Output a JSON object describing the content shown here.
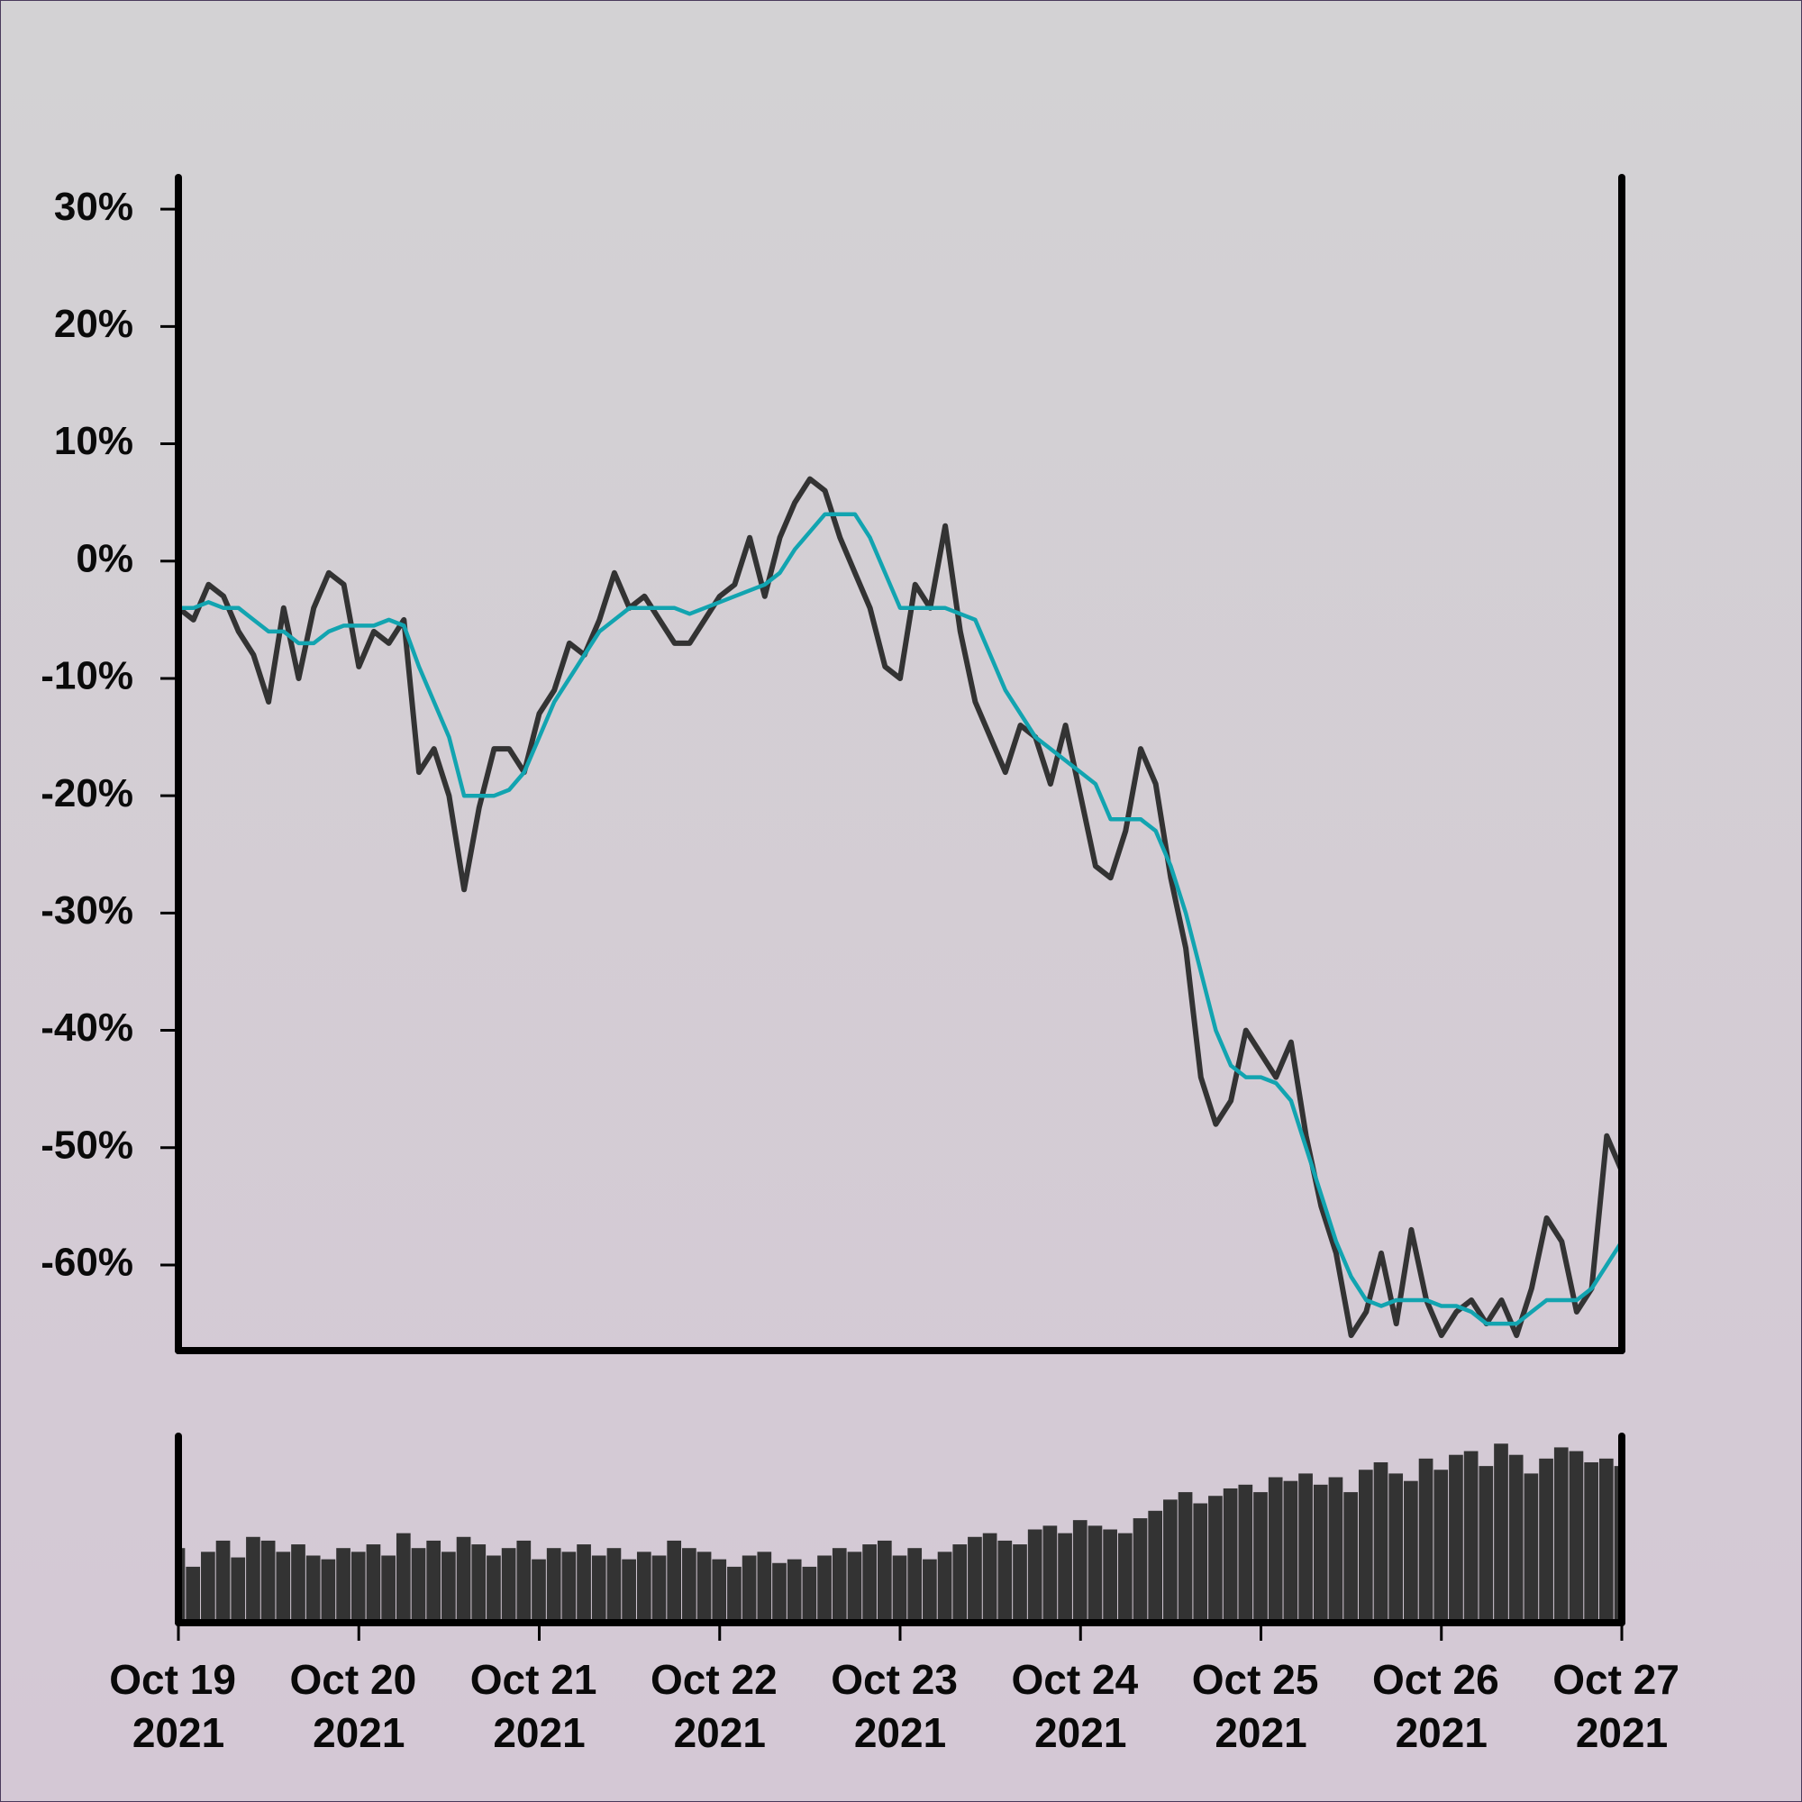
{
  "chart_data": [
    {
      "type": "line",
      "x": [
        "2021-10-19T00:00",
        "2021-10-19T02:00",
        "2021-10-19T04:00",
        "2021-10-19T06:00",
        "2021-10-19T08:00",
        "2021-10-19T10:00",
        "2021-10-19T12:00",
        "2021-10-19T14:00",
        "2021-10-19T16:00",
        "2021-10-19T18:00",
        "2021-10-19T20:00",
        "2021-10-19T22:00",
        "2021-10-20T00:00",
        "2021-10-20T02:00",
        "2021-10-20T04:00",
        "2021-10-20T06:00",
        "2021-10-20T08:00",
        "2021-10-20T10:00",
        "2021-10-20T12:00",
        "2021-10-20T14:00",
        "2021-10-20T16:00",
        "2021-10-20T18:00",
        "2021-10-20T20:00",
        "2021-10-20T22:00",
        "2021-10-21T00:00",
        "2021-10-21T02:00",
        "2021-10-21T04:00",
        "2021-10-21T06:00",
        "2021-10-21T08:00",
        "2021-10-21T10:00",
        "2021-10-21T12:00",
        "2021-10-21T14:00",
        "2021-10-21T16:00",
        "2021-10-21T18:00",
        "2021-10-21T20:00",
        "2021-10-21T22:00",
        "2021-10-22T00:00",
        "2021-10-22T02:00",
        "2021-10-22T04:00",
        "2021-10-22T06:00",
        "2021-10-22T08:00",
        "2021-10-22T10:00",
        "2021-10-22T12:00",
        "2021-10-22T14:00",
        "2021-10-22T16:00",
        "2021-10-22T18:00",
        "2021-10-22T20:00",
        "2021-10-22T22:00",
        "2021-10-23T00:00",
        "2021-10-23T02:00",
        "2021-10-23T04:00",
        "2021-10-23T06:00",
        "2021-10-23T08:00",
        "2021-10-23T10:00",
        "2021-10-23T12:00",
        "2021-10-23T14:00",
        "2021-10-23T16:00",
        "2021-10-23T18:00",
        "2021-10-23T20:00",
        "2021-10-23T22:00",
        "2021-10-24T00:00",
        "2021-10-24T02:00",
        "2021-10-24T04:00",
        "2021-10-24T06:00",
        "2021-10-24T08:00",
        "2021-10-24T10:00",
        "2021-10-24T12:00",
        "2021-10-24T14:00",
        "2021-10-24T16:00",
        "2021-10-24T18:00",
        "2021-10-24T20:00",
        "2021-10-24T22:00",
        "2021-10-25T00:00",
        "2021-10-25T02:00",
        "2021-10-25T04:00",
        "2021-10-25T06:00",
        "2021-10-25T08:00",
        "2021-10-25T10:00",
        "2021-10-25T12:00",
        "2021-10-25T14:00",
        "2021-10-25T16:00",
        "2021-10-25T18:00",
        "2021-10-25T20:00",
        "2021-10-25T22:00",
        "2021-10-26T00:00",
        "2021-10-26T02:00",
        "2021-10-26T04:00",
        "2021-10-26T06:00",
        "2021-10-26T08:00",
        "2021-10-26T10:00",
        "2021-10-26T12:00",
        "2021-10-26T14:00",
        "2021-10-26T16:00",
        "2021-10-26T18:00",
        "2021-10-26T20:00",
        "2021-10-26T22:00",
        "2021-10-27T00:00"
      ],
      "series": [
        {
          "color": "#333333",
          "values": [
            -4,
            -5,
            -2,
            -3,
            -6,
            -8,
            -12,
            -4,
            -10,
            -4,
            -1,
            -2,
            -9,
            -6,
            -7,
            -5,
            -18,
            -16,
            -20,
            -28,
            -21,
            -16,
            -16,
            -18,
            -13,
            -11,
            -7,
            -8,
            -5,
            -1,
            -4,
            -3,
            -5,
            -7,
            -7,
            -5,
            -3,
            -2,
            2,
            -3,
            2,
            5,
            7,
            6,
            2,
            -1,
            -4,
            -9,
            -10,
            -2,
            -4,
            3,
            -6,
            -12,
            -15,
            -18,
            -14,
            -15,
            -19,
            -14,
            -20,
            -26,
            -27,
            -23,
            -16,
            -19,
            -27,
            -33,
            -44,
            -48,
            -46,
            -40,
            -42,
            -44,
            -41,
            -49,
            -55,
            -59,
            -66,
            -64,
            -59,
            -65,
            -57,
            -63,
            -66,
            -64,
            -63,
            -65,
            -63,
            -66,
            -62,
            -56,
            -58,
            -64,
            -62,
            -49,
            -52
          ]
        },
        {
          "color": "#12a4b0",
          "values": [
            -4,
            -4,
            -3.5,
            -4,
            -4,
            -5,
            -6,
            -6,
            -7,
            -7,
            -6,
            -5.5,
            -5.5,
            -5.5,
            -5,
            -5.5,
            -9,
            -12,
            -15,
            -20,
            -20,
            -20,
            -19.5,
            -18,
            -15,
            -12,
            -10,
            -8,
            -6,
            -5,
            -4,
            -4,
            -4,
            -4,
            -4.5,
            -4,
            -3.5,
            -3,
            -2.5,
            -2,
            -1,
            1,
            2.5,
            4,
            4,
            4,
            2,
            -1,
            -4,
            -4,
            -4,
            -4,
            -4.5,
            -5,
            -8,
            -11,
            -13,
            -15,
            -16,
            -17,
            -18,
            -19,
            -22,
            -22,
            -22,
            -23,
            -26,
            -30,
            -35,
            -40,
            -43,
            -44,
            -44,
            -44.5,
            -46,
            -50,
            -54,
            -58,
            -61,
            -63,
            -63.5,
            -63,
            -63,
            -63,
            -63.5,
            -63.5,
            -64,
            -65,
            -65,
            -65,
            -64,
            -63,
            -63,
            -63,
            -62,
            -60,
            -58
          ]
        }
      ],
      "xlim": [
        "2021-10-19T00:00",
        "2021-10-27T00:00"
      ],
      "ylim": [
        -67.3,
        32.7
      ],
      "yticks": [
        {
          "value": -60,
          "label": "-60%"
        },
        {
          "value": -50,
          "label": "-50%"
        },
        {
          "value": -40,
          "label": "-40%"
        },
        {
          "value": -30,
          "label": "-30%"
        },
        {
          "value": -20,
          "label": "-20%"
        },
        {
          "value": -10,
          "label": "-10%"
        },
        {
          "value": 0,
          "label": "0%"
        },
        {
          "value": 10,
          "label": "10%"
        },
        {
          "value": 20,
          "label": "20%"
        },
        {
          "value": 30,
          "label": "30%"
        }
      ]
    },
    {
      "type": "bar",
      "x": [
        "2021-10-19T00:00",
        "2021-10-19T02:00",
        "2021-10-19T04:00",
        "2021-10-19T06:00",
        "2021-10-19T08:00",
        "2021-10-19T10:00",
        "2021-10-19T12:00",
        "2021-10-19T14:00",
        "2021-10-19T16:00",
        "2021-10-19T18:00",
        "2021-10-19T20:00",
        "2021-10-19T22:00",
        "2021-10-20T00:00",
        "2021-10-20T02:00",
        "2021-10-20T04:00",
        "2021-10-20T06:00",
        "2021-10-20T08:00",
        "2021-10-20T10:00",
        "2021-10-20T12:00",
        "2021-10-20T14:00",
        "2021-10-20T16:00",
        "2021-10-20T18:00",
        "2021-10-20T20:00",
        "2021-10-20T22:00",
        "2021-10-21T00:00",
        "2021-10-21T02:00",
        "2021-10-21T04:00",
        "2021-10-21T06:00",
        "2021-10-21T08:00",
        "2021-10-21T10:00",
        "2021-10-21T12:00",
        "2021-10-21T14:00",
        "2021-10-21T16:00",
        "2021-10-21T18:00",
        "2021-10-21T20:00",
        "2021-10-21T22:00",
        "2021-10-22T00:00",
        "2021-10-22T02:00",
        "2021-10-22T04:00",
        "2021-10-22T06:00",
        "2021-10-22T08:00",
        "2021-10-22T10:00",
        "2021-10-22T12:00",
        "2021-10-22T14:00",
        "2021-10-22T16:00",
        "2021-10-22T18:00",
        "2021-10-22T20:00",
        "2021-10-22T22:00",
        "2021-10-23T00:00",
        "2021-10-23T02:00",
        "2021-10-23T04:00",
        "2021-10-23T06:00",
        "2021-10-23T08:00",
        "2021-10-23T10:00",
        "2021-10-23T12:00",
        "2021-10-23T14:00",
        "2021-10-23T16:00",
        "2021-10-23T18:00",
        "2021-10-23T20:00",
        "2021-10-23T22:00",
        "2021-10-24T00:00",
        "2021-10-24T02:00",
        "2021-10-24T04:00",
        "2021-10-24T06:00",
        "2021-10-24T08:00",
        "2021-10-24T10:00",
        "2021-10-24T12:00",
        "2021-10-24T14:00",
        "2021-10-24T16:00",
        "2021-10-24T18:00",
        "2021-10-24T20:00",
        "2021-10-24T22:00",
        "2021-10-25T00:00",
        "2021-10-25T02:00",
        "2021-10-25T04:00",
        "2021-10-25T06:00",
        "2021-10-25T08:00",
        "2021-10-25T10:00",
        "2021-10-25T12:00",
        "2021-10-25T14:00",
        "2021-10-25T16:00",
        "2021-10-25T18:00",
        "2021-10-25T20:00",
        "2021-10-25T22:00",
        "2021-10-26T00:00",
        "2021-10-26T02:00",
        "2021-10-26T04:00",
        "2021-10-26T06:00",
        "2021-10-26T08:00",
        "2021-10-26T10:00",
        "2021-10-26T12:00",
        "2021-10-26T14:00",
        "2021-10-26T16:00",
        "2021-10-26T18:00",
        "2021-10-26T20:00",
        "2021-10-26T22:00",
        "2021-10-27T00:00"
      ],
      "values": [
        40,
        30,
        38,
        44,
        35,
        46,
        44,
        38,
        42,
        36,
        34,
        40,
        38,
        42,
        36,
        48,
        40,
        44,
        38,
        46,
        42,
        36,
        40,
        44,
        34,
        40,
        38,
        42,
        36,
        40,
        34,
        38,
        36,
        44,
        40,
        38,
        34,
        30,
        36,
        38,
        32,
        34,
        30,
        36,
        40,
        38,
        42,
        44,
        36,
        40,
        34,
        38,
        42,
        46,
        48,
        44,
        42,
        50,
        52,
        48,
        55,
        52,
        50,
        48,
        56,
        60,
        66,
        70,
        64,
        68,
        72,
        74,
        70,
        78,
        76,
        80,
        74,
        78,
        70,
        82,
        86,
        80,
        76,
        88,
        82,
        90,
        92,
        84,
        96,
        90,
        80,
        88,
        94,
        92,
        86,
        88,
        84
      ],
      "color": "#333333",
      "xlim": [
        "2021-10-19T00:00",
        "2021-10-27T00:00"
      ],
      "ylim": [
        0,
        100
      ],
      "xticks": [
        {
          "value": "2021-10-19T00:00",
          "label": "Oct 19 2021"
        },
        {
          "value": "2021-10-20T00:00",
          "label": "Oct 20 2021"
        },
        {
          "value": "2021-10-21T00:00",
          "label": "Oct 21 2021"
        },
        {
          "value": "2021-10-22T00:00",
          "label": "Oct 22 2021"
        },
        {
          "value": "2021-10-23T00:00",
          "label": "Oct 23 2021"
        },
        {
          "value": "2021-10-24T00:00",
          "label": "Oct 24 2021"
        },
        {
          "value": "2021-10-25T00:00",
          "label": "Oct 25 2021"
        },
        {
          "value": "2021-10-26T00:00",
          "label": "Oct 26 2021"
        },
        {
          "value": "2021-10-27T00:00",
          "label": "Oct 27 2021"
        }
      ]
    }
  ]
}
